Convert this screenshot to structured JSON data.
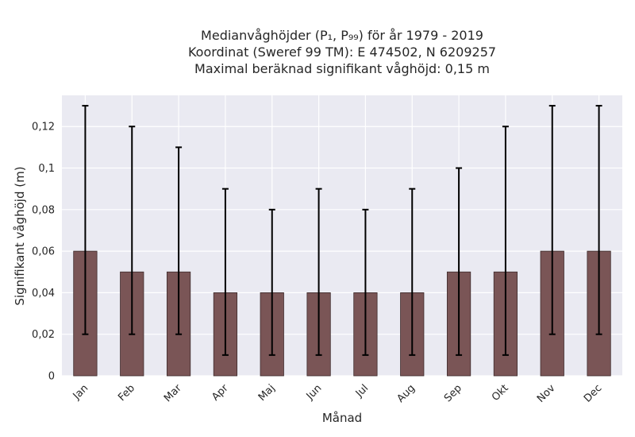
{
  "chart_data": {
    "type": "bar",
    "title_lines": [
      "Medianvåghöjder (P₁, P₉₉) för år 1979 - 2019",
      "Koordinat (Sweref 99 TM): E 474502, N 6209257",
      "Maximal beräknad signifikant våghöjd: 0,15 m"
    ],
    "xlabel": "Månad",
    "ylabel": "Signifikant våghöjd (m)",
    "categories": [
      "Jan",
      "Feb",
      "Mar",
      "Apr",
      "Maj",
      "Jun",
      "Jul",
      "Aug",
      "Sep",
      "Okt",
      "Nov",
      "Dec"
    ],
    "series": [
      {
        "values": [
          0.06,
          0.05,
          0.05,
          0.04,
          0.04,
          0.04,
          0.04,
          0.04,
          0.05,
          0.05,
          0.06,
          0.06
        ],
        "p1": [
          0.02,
          0.02,
          0.02,
          0.01,
          0.01,
          0.01,
          0.01,
          0.01,
          0.01,
          0.01,
          0.02,
          0.02
        ],
        "p99": [
          0.13,
          0.12,
          0.11,
          0.09,
          0.08,
          0.09,
          0.08,
          0.09,
          0.1,
          0.12,
          0.13,
          0.13
        ]
      }
    ],
    "ylim": [
      0,
      0.135
    ],
    "yticks": [
      0,
      0.02,
      0.04,
      0.06,
      0.08,
      0.1,
      0.12
    ],
    "ytick_labels": [
      "0",
      "0,02",
      "0,04",
      "0,06",
      "0,08",
      "0,1",
      "0,12"
    ],
    "grid": true,
    "colors": {
      "bar": "#7a5556",
      "bar_edge": "#3d2b2c",
      "error_bar": "#000000",
      "plot_bg": "#eaeaf2",
      "grid": "#ffffff"
    }
  }
}
